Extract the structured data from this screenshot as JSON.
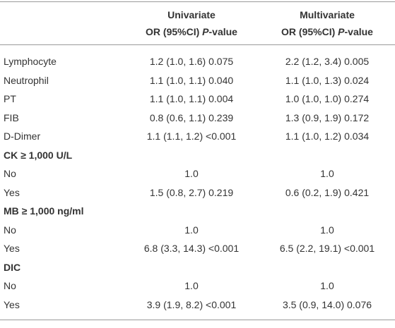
{
  "table": {
    "header": {
      "groups": [
        "Univariate",
        "Multivariate"
      ],
      "sub": [
        [
          "OR (95%CI)",
          "P-value"
        ],
        [
          "OR (95%CI)",
          "P-value"
        ]
      ]
    },
    "rows": [
      [
        "Lymphocyte",
        "1.2 (1.0, 1.6) 0.075",
        "2.2 (1.2, 3.4) 0.005"
      ],
      [
        "Neutrophil",
        "1.1 (1.0, 1.1) 0.040",
        "1.1 (1.0, 1.3) 0.024"
      ],
      [
        "PT",
        "1.1 (1.0, 1.1) 0.004",
        "1.0 (1.0, 1.0) 0.274"
      ],
      [
        "FIB",
        "0.8 (0.6, 1.1) 0.239",
        "1.3 (0.9, 1.9) 0.172"
      ],
      [
        "D-Dimer",
        "1.1 (1.1, 1.2) <0.001",
        "1.1 (1.0, 1.2) 0.034"
      ],
      [
        "CK ≥ 1,000 U/L"
      ],
      [
        "No",
        "1.0",
        "1.0"
      ],
      [
        "Yes",
        "1.5 (0.8, 2.7) 0.219",
        "0.6 (0.2, 1.9) 0.421"
      ],
      [
        "MB ≥ 1,000 ng/ml"
      ],
      [
        "No",
        "1.0",
        "1.0"
      ],
      [
        "Yes",
        "6.8 (3.3, 14.3) <0.001",
        "6.5 (2.2, 19.1) <0.001"
      ],
      [
        "DIC"
      ],
      [
        "No",
        "1.0",
        "1.0"
      ],
      [
        "Yes",
        "3.9 (1.9, 8.2) <0.001",
        "3.5 (0.9, 14.0) 0.076"
      ]
    ]
  }
}
